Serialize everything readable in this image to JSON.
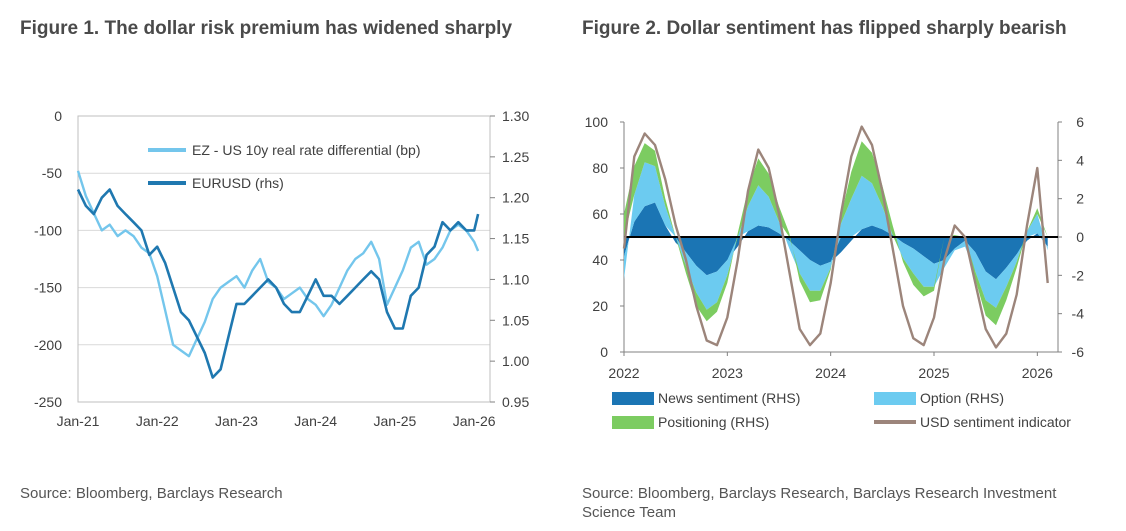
{
  "panels": {
    "fig1": {
      "title": "Figure 1. The dollar risk premium has widened sharply",
      "source": "Source: Bloomberg, Barclays Research"
    },
    "fig2": {
      "title": "Figure 2. Dollar sentiment has flipped sharply bearish",
      "source": "Source: Bloomberg, Barclays Research, Barclays Research Investment Science Team"
    }
  },
  "chart_data": [
    {
      "type": "line",
      "title": "Figure 1. The dollar risk premium has widened sharply",
      "x_ticks": [
        "Jan-21",
        "Jan-22",
        "Jan-23",
        "Jan-24",
        "Jan-25",
        "Jan-26"
      ],
      "x_range": [
        2021.0,
        2026.2
      ],
      "y_left": {
        "ticks": [
          "0",
          "-50",
          "-100",
          "-150",
          "-200",
          "-250"
        ],
        "range": [
          -250,
          0
        ]
      },
      "y_right": {
        "ticks": [
          "1.30",
          "1.25",
          "1.20",
          "1.15",
          "1.10",
          "1.05",
          "1.00",
          "0.95"
        ],
        "range": [
          0.95,
          1.3
        ]
      },
      "legend": [
        "EZ - US 10y real rate differential (bp)",
        "EURUSD (rhs)"
      ],
      "grid": true,
      "colors": {
        "diff": "#74c6ec",
        "eurusd": "#1f78b0"
      },
      "series": [
        {
          "name": "EZ - US 10y real rate differential (bp)",
          "axis": "left",
          "x": [
            2021.0,
            2021.1,
            2021.2,
            2021.3,
            2021.4,
            2021.5,
            2021.6,
            2021.7,
            2021.8,
            2021.9,
            2022.0,
            2022.1,
            2022.2,
            2022.3,
            2022.4,
            2022.5,
            2022.6,
            2022.7,
            2022.8,
            2022.9,
            2023.0,
            2023.1,
            2023.2,
            2023.3,
            2023.4,
            2023.5,
            2023.6,
            2023.7,
            2023.8,
            2023.9,
            2024.0,
            2024.1,
            2024.2,
            2024.3,
            2024.4,
            2024.5,
            2024.6,
            2024.7,
            2024.8,
            2024.9,
            2025.0,
            2025.1,
            2025.2,
            2025.3,
            2025.4,
            2025.5,
            2025.6,
            2025.7,
            2025.8,
            2025.9,
            2026.0,
            2026.05
          ],
          "values": [
            -48,
            -70,
            -85,
            -100,
            -95,
            -105,
            -100,
            -105,
            -115,
            -120,
            -140,
            -170,
            -200,
            -205,
            -210,
            -195,
            -180,
            -160,
            -150,
            -145,
            -140,
            -150,
            -135,
            -125,
            -145,
            -150,
            -160,
            -155,
            -150,
            -160,
            -165,
            -175,
            -165,
            -150,
            -135,
            -125,
            -120,
            -110,
            -125,
            -165,
            -150,
            -135,
            -115,
            -110,
            -130,
            -125,
            -115,
            -100,
            -95,
            -100,
            -110,
            -118
          ]
        },
        {
          "name": "EURUSD (rhs)",
          "axis": "right",
          "x": [
            2021.0,
            2021.1,
            2021.2,
            2021.3,
            2021.4,
            2021.5,
            2021.6,
            2021.7,
            2021.8,
            2021.9,
            2022.0,
            2022.1,
            2022.2,
            2022.3,
            2022.4,
            2022.5,
            2022.6,
            2022.7,
            2022.8,
            2022.9,
            2023.0,
            2023.1,
            2023.2,
            2023.3,
            2023.4,
            2023.5,
            2023.6,
            2023.7,
            2023.8,
            2023.9,
            2024.0,
            2024.1,
            2024.2,
            2024.3,
            2024.4,
            2024.5,
            2024.6,
            2024.7,
            2024.8,
            2024.9,
            2025.0,
            2025.1,
            2025.2,
            2025.3,
            2025.4,
            2025.5,
            2025.6,
            2025.7,
            2025.8,
            2025.9,
            2026.0,
            2026.05
          ],
          "values": [
            1.21,
            1.19,
            1.18,
            1.2,
            1.21,
            1.19,
            1.18,
            1.17,
            1.16,
            1.13,
            1.14,
            1.12,
            1.09,
            1.06,
            1.05,
            1.03,
            1.01,
            0.98,
            0.99,
            1.03,
            1.07,
            1.07,
            1.08,
            1.09,
            1.1,
            1.09,
            1.07,
            1.06,
            1.06,
            1.08,
            1.1,
            1.08,
            1.08,
            1.07,
            1.08,
            1.09,
            1.1,
            1.11,
            1.1,
            1.06,
            1.04,
            1.04,
            1.08,
            1.09,
            1.13,
            1.14,
            1.17,
            1.16,
            1.17,
            1.16,
            1.16,
            1.18
          ]
        }
      ]
    },
    {
      "type": "area",
      "title": "Figure 2. Dollar sentiment has flipped sharply bearish",
      "x_ticks": [
        "2022",
        "2023",
        "2024",
        "2025",
        "2026"
      ],
      "x_range": [
        2022.0,
        2026.2
      ],
      "y_left": {
        "ticks": [
          "100",
          "80",
          "60",
          "40",
          "20",
          "0"
        ],
        "range": [
          0,
          100
        ]
      },
      "y_right": {
        "ticks": [
          "6",
          "4",
          "2",
          "0",
          "-2",
          "-4",
          "-6"
        ],
        "range": [
          -6,
          6
        ]
      },
      "legend": [
        "News sentiment (RHS)",
        "Option (RHS)",
        "Positioning (RHS)",
        "USD sentiment indicator"
      ],
      "colors": {
        "news": "#1b75b4",
        "option": "#6ccbf0",
        "positioning": "#7ccc61",
        "usd": "#9c857b"
      },
      "series": [
        {
          "name": "News sentiment (RHS)",
          "axis": "right",
          "x": [
            2022.0,
            2022.1,
            2022.2,
            2022.3,
            2022.4,
            2022.5,
            2022.6,
            2022.7,
            2022.8,
            2022.9,
            2023.0,
            2023.1,
            2023.2,
            2023.3,
            2023.4,
            2023.5,
            2023.6,
            2023.7,
            2023.8,
            2023.9,
            2024.0,
            2024.1,
            2024.2,
            2024.3,
            2024.4,
            2024.5,
            2024.6,
            2024.7,
            2024.8,
            2024.9,
            2025.0,
            2025.1,
            2025.2,
            2025.3,
            2025.4,
            2025.5,
            2025.6,
            2025.7,
            2025.8,
            2025.9,
            2026.0,
            2026.1
          ],
          "values": [
            -1.0,
            0.8,
            1.6,
            1.8,
            0.6,
            -0.3,
            -0.8,
            -1.5,
            -2.0,
            -1.8,
            -1.2,
            -0.5,
            0.3,
            0.6,
            0.5,
            0.2,
            -0.2,
            -0.7,
            -1.2,
            -1.5,
            -1.3,
            -0.8,
            -0.2,
            0.4,
            0.6,
            0.4,
            0.1,
            -0.3,
            -0.6,
            -1.0,
            -1.4,
            -1.2,
            -0.6,
            -0.2,
            -0.8,
            -1.8,
            -2.2,
            -1.6,
            -0.9,
            -0.2,
            0.2,
            -0.5
          ]
        },
        {
          "name": "Option (RHS)",
          "axis": "right",
          "x": [
            2022.0,
            2022.1,
            2022.2,
            2022.3,
            2022.4,
            2022.5,
            2022.6,
            2022.7,
            2022.8,
            2022.9,
            2023.0,
            2023.1,
            2023.2,
            2023.3,
            2023.4,
            2023.5,
            2023.6,
            2023.7,
            2023.8,
            2023.9,
            2024.0,
            2024.1,
            2024.2,
            2024.3,
            2024.4,
            2024.5,
            2024.6,
            2024.7,
            2024.8,
            2024.9,
            2025.0,
            2025.1,
            2025.2,
            2025.3,
            2025.4,
            2025.5,
            2025.6,
            2025.7,
            2025.8,
            2025.9,
            2026.0,
            2026.1
          ],
          "values": [
            -1.2,
            1.4,
            2.3,
            1.9,
            1.0,
            0.0,
            -0.7,
            -1.4,
            -1.8,
            -1.6,
            -0.8,
            0.0,
            1.3,
            2.1,
            1.6,
            0.6,
            -0.4,
            -1.2,
            -1.6,
            -1.3,
            -0.3,
            0.7,
            2.0,
            2.8,
            2.2,
            1.2,
            0.0,
            -0.8,
            -1.3,
            -1.6,
            -1.2,
            -0.4,
            -0.1,
            -0.3,
            -1.0,
            -1.5,
            -1.5,
            -1.0,
            -0.4,
            0.3,
            1.0,
            -0.2
          ]
        },
        {
          "name": "Positioning (RHS)",
          "axis": "right",
          "x": [
            2022.0,
            2022.1,
            2022.2,
            2022.3,
            2022.4,
            2022.5,
            2022.6,
            2022.7,
            2022.8,
            2022.9,
            2023.0,
            2023.1,
            2023.2,
            2023.3,
            2023.4,
            2023.5,
            2023.6,
            2023.7,
            2023.8,
            2023.9,
            2024.0,
            2024.1,
            2024.2,
            2024.3,
            2024.4,
            2024.5,
            2024.6,
            2024.7,
            2024.8,
            2024.9,
            2025.0,
            2025.1,
            2025.2,
            2025.3,
            2025.4,
            2025.5,
            2025.6,
            2025.7,
            2025.8,
            2025.9,
            2026.0,
            2026.1
          ],
          "values": [
            1.2,
            1.5,
            1.0,
            0.8,
            0.4,
            0.0,
            -0.4,
            -0.7,
            -0.6,
            -0.5,
            -0.4,
            0.2,
            0.9,
            1.4,
            1.2,
            0.8,
            0.2,
            -0.4,
            -0.6,
            -0.5,
            -0.1,
            0.4,
            1.4,
            1.8,
            1.6,
            1.1,
            0.5,
            -0.2,
            -0.6,
            -0.5,
            -0.2,
            0.0,
            0.1,
            0.0,
            -0.4,
            -0.8,
            -0.9,
            -0.7,
            -0.3,
            0.0,
            0.3,
            0.0
          ]
        },
        {
          "name": "USD sentiment indicator",
          "axis": "left",
          "x": [
            2022.0,
            2022.1,
            2022.2,
            2022.3,
            2022.4,
            2022.5,
            2022.6,
            2022.7,
            2022.8,
            2022.9,
            2023.0,
            2023.1,
            2023.2,
            2023.3,
            2023.4,
            2023.5,
            2023.6,
            2023.7,
            2023.8,
            2023.9,
            2024.0,
            2024.1,
            2024.2,
            2024.3,
            2024.4,
            2024.5,
            2024.6,
            2024.7,
            2024.8,
            2024.9,
            2025.0,
            2025.1,
            2025.2,
            2025.3,
            2025.4,
            2025.5,
            2025.6,
            2025.7,
            2025.8,
            2025.9,
            2026.0,
            2026.1
          ],
          "values": [
            45,
            85,
            95,
            90,
            75,
            55,
            40,
            20,
            5,
            3,
            15,
            40,
            70,
            88,
            80,
            60,
            35,
            10,
            3,
            8,
            30,
            60,
            85,
            98,
            90,
            70,
            45,
            20,
            6,
            3,
            15,
            40,
            55,
            50,
            30,
            10,
            2,
            8,
            25,
            55,
            80,
            30
          ]
        }
      ]
    }
  ]
}
